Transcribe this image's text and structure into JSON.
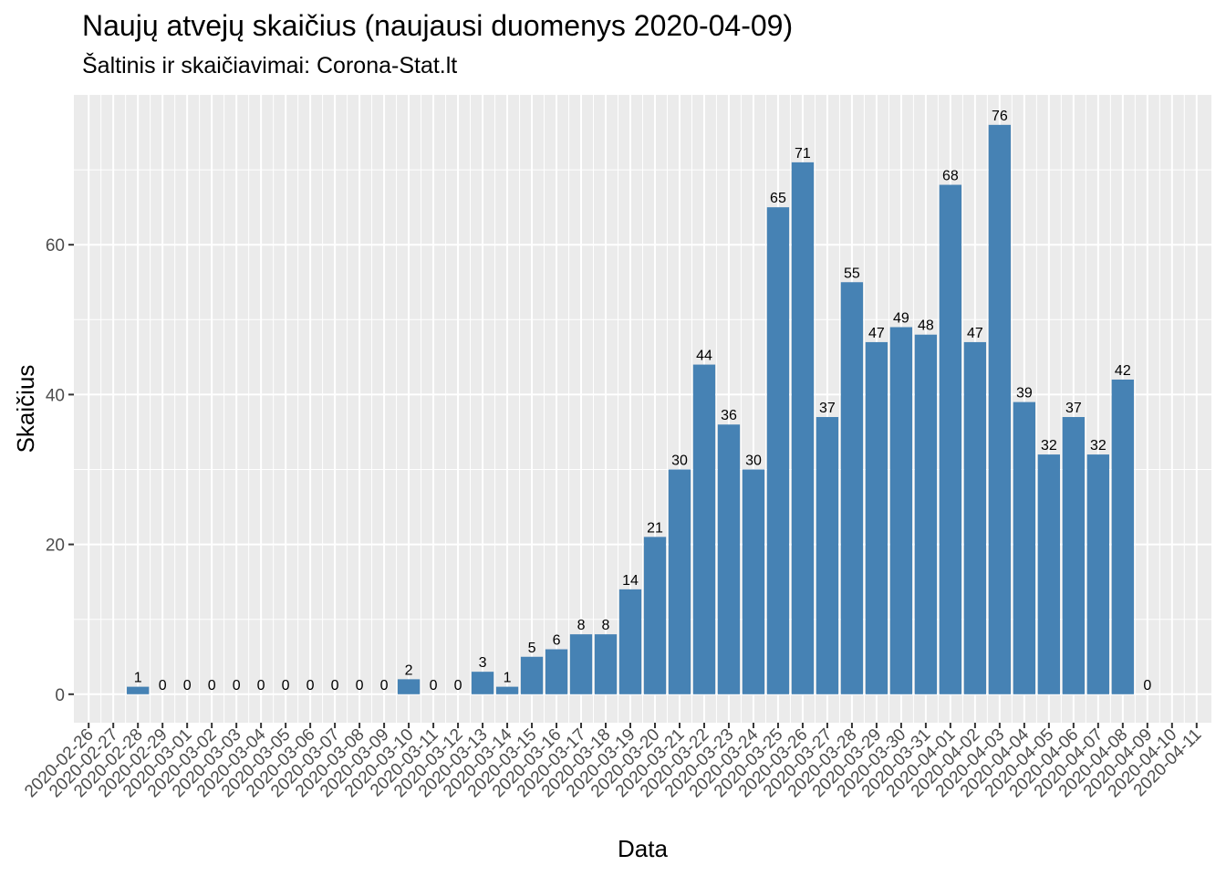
{
  "chart_data": {
    "type": "bar",
    "title": "Naujų atvejų skaičius (naujausi duomenys 2020-04-09)",
    "subtitle": "Šaltinis ir skaičiavimai: Corona-Stat.lt",
    "xlabel": "Data",
    "ylabel": "Skaičius",
    "categories": [
      "2020-02-26",
      "2020-02-27",
      "2020-02-28",
      "2020-02-29",
      "2020-03-01",
      "2020-03-02",
      "2020-03-03",
      "2020-03-04",
      "2020-03-05",
      "2020-03-06",
      "2020-03-07",
      "2020-03-08",
      "2020-03-09",
      "2020-03-10",
      "2020-03-11",
      "2020-03-12",
      "2020-03-13",
      "2020-03-14",
      "2020-03-15",
      "2020-03-16",
      "2020-03-17",
      "2020-03-18",
      "2020-03-19",
      "2020-03-20",
      "2020-03-21",
      "2020-03-22",
      "2020-03-23",
      "2020-03-24",
      "2020-03-25",
      "2020-03-26",
      "2020-03-27",
      "2020-03-28",
      "2020-03-29",
      "2020-03-30",
      "2020-03-31",
      "2020-04-01",
      "2020-04-02",
      "2020-04-03",
      "2020-04-04",
      "2020-04-05",
      "2020-04-06",
      "2020-04-07",
      "2020-04-08",
      "2020-04-09",
      "2020-04-10",
      "2020-04-11"
    ],
    "values": [
      null,
      null,
      1,
      0,
      0,
      0,
      0,
      0,
      0,
      0,
      0,
      0,
      0,
      2,
      0,
      0,
      3,
      1,
      5,
      6,
      8,
      8,
      14,
      21,
      30,
      44,
      36,
      30,
      65,
      71,
      37,
      55,
      47,
      49,
      48,
      68,
      47,
      76,
      39,
      32,
      37,
      32,
      42,
      0,
      null,
      null
    ],
    "yticks": [
      0,
      20,
      40,
      60
    ],
    "ylim": [
      -3.8,
      80
    ],
    "bar_color": "#4682B4",
    "panel_background": "#EBEBEB",
    "grid": true,
    "legend": "none"
  }
}
